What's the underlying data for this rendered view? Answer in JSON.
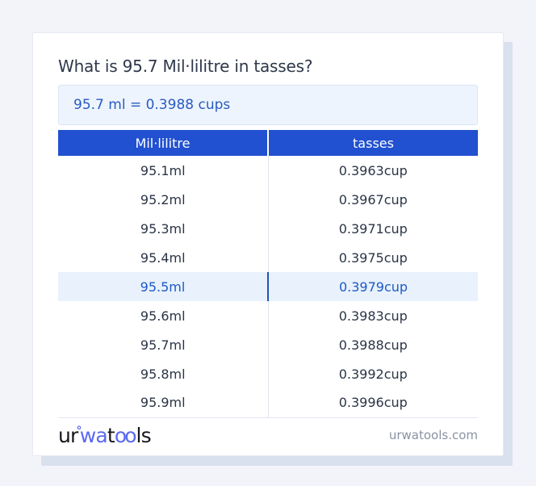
{
  "page": {
    "background": "#f2f4f9"
  },
  "header": {
    "title": "What is 95.7 Mil·lilitre in tasses?"
  },
  "result_box": {
    "text": "95.7 ml = 0.3988 cups"
  },
  "table": {
    "columns": [
      "Mil·lilitre",
      "tasses"
    ],
    "rows": [
      {
        "ml": "95.1ml",
        "cup": "0.3963cup",
        "highlight": false
      },
      {
        "ml": "95.2ml",
        "cup": "0.3967cup",
        "highlight": false
      },
      {
        "ml": "95.3ml",
        "cup": "0.3971cup",
        "highlight": false
      },
      {
        "ml": "95.4ml",
        "cup": "0.3975cup",
        "highlight": false
      },
      {
        "ml": "95.5ml",
        "cup": "0.3979cup",
        "highlight": true
      },
      {
        "ml": "95.6ml",
        "cup": "0.3983cup",
        "highlight": false
      },
      {
        "ml": "95.7ml",
        "cup": "0.3988cup",
        "highlight": false
      },
      {
        "ml": "95.8ml",
        "cup": "0.3992cup",
        "highlight": false
      },
      {
        "ml": "95.9ml",
        "cup": "0.3996cup",
        "highlight": false
      }
    ]
  },
  "footer": {
    "logo": {
      "seg1": "ur",
      "ring": "°",
      "seg2": "wa",
      "seg3": "t",
      "seg4": "oo",
      "seg5": "ls"
    },
    "site": "urwatools.com"
  },
  "colors": {
    "table_header_blue": "#2150d0",
    "result_text_blue": "#2a5bc2",
    "highlight_row_bg": "#e8f1fc",
    "highlight_text_blue": "#1d5ac6",
    "highlight_divider_blue": "#1e55b0",
    "logo_blue": "#5a6af0",
    "card_shadow": "#d9e0ee"
  }
}
